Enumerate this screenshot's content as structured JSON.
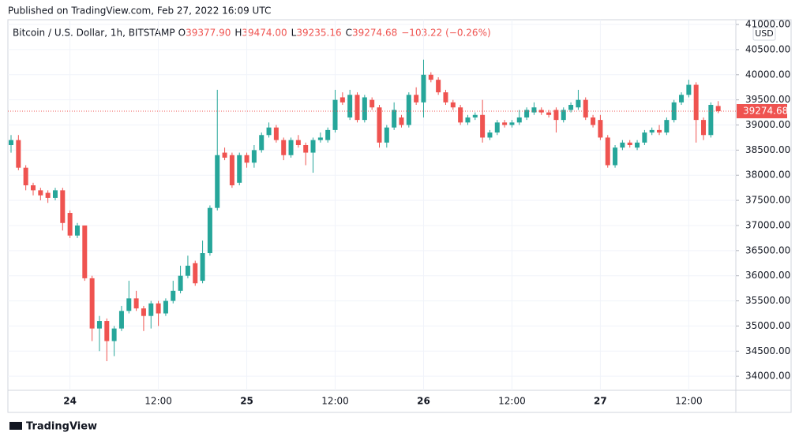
{
  "chart_data": {
    "type": "candlestick",
    "published": "Published on TradingView.com, Feb 27, 2022 16:09 UTC",
    "brand": "TradingView",
    "header": {
      "symbol": "Bitcoin / U.S. Dollar, 1h, BITSTAMP",
      "o_label": "O",
      "o": "39377.90",
      "h_label": "H",
      "h": "39474.00",
      "l_label": "L",
      "l": "39235.16",
      "c_label": "C",
      "c": "39274.68",
      "change": "−103.22 (−0.26%)"
    },
    "currency": "USD",
    "last_price": 39274.68,
    "up_color": "#26a69a",
    "down_color": "#ef5350",
    "grid": true,
    "categories": [
      null,
      null,
      null,
      null,
      null,
      null,
      null,
      null,
      "24",
      null,
      null,
      null,
      null,
      null,
      null,
      null,
      null,
      null,
      null,
      null,
      "12:00",
      null,
      null,
      null,
      null,
      null,
      null,
      null,
      null,
      null,
      null,
      null,
      "25",
      null,
      null,
      null,
      null,
      null,
      null,
      null,
      null,
      null,
      null,
      null,
      "12:00",
      null,
      null,
      null,
      null,
      null,
      null,
      null,
      null,
      null,
      null,
      null,
      "26",
      null,
      null,
      null,
      null,
      null,
      null,
      null,
      null,
      null,
      null,
      null,
      "12:00",
      null,
      null,
      null,
      null,
      null,
      null,
      null,
      null,
      null,
      null,
      null,
      "27",
      null,
      null,
      null,
      null,
      null,
      null,
      null,
      null,
      null,
      null,
      null,
      "12:00",
      null,
      null,
      null,
      null
    ],
    "open": [
      38600,
      38700,
      38150,
      37800,
      37700,
      37650,
      37550,
      37700,
      37250,
      36800,
      37000,
      35950,
      34950,
      35100,
      34700,
      34950,
      35300,
      35550,
      35350,
      35200,
      35450,
      35250,
      35500,
      35700,
      36000,
      36250,
      35900,
      36450,
      37350,
      38450,
      38400,
      37850,
      38400,
      38250,
      38500,
      38800,
      38950,
      38700,
      38400,
      38700,
      38600,
      38450,
      38700,
      38700,
      38900,
      39550,
      39150,
      39600,
      39100,
      39500,
      39350,
      38650,
      38950,
      39150,
      39000,
      39600,
      39450,
      40000,
      39900,
      39650,
      39450,
      39350,
      39050,
      39150,
      39200,
      38750,
      38850,
      39050,
      39000,
      39050,
      39150,
      39250,
      39300,
      39250,
      39300,
      39100,
      39300,
      39350,
      39500,
      39150,
      39100,
      38750,
      38200,
      38550,
      38650,
      38550,
      38650,
      38850,
      38900,
      38850,
      39100,
      39450,
      39600,
      39800,
      39100,
      38800,
      39377.9
    ],
    "high": [
      38800,
      38800,
      38200,
      37850,
      37750,
      37700,
      37750,
      37750,
      37300,
      37050,
      37000,
      36000,
      35200,
      35150,
      35000,
      35400,
      35900,
      35700,
      35400,
      35500,
      35500,
      35550,
      35900,
      36200,
      36400,
      36300,
      36700,
      37400,
      39700,
      38550,
      38450,
      38450,
      38450,
      38600,
      38850,
      39050,
      39000,
      38750,
      38750,
      38800,
      38650,
      38750,
      38850,
      38950,
      39700,
      39650,
      39700,
      39650,
      39600,
      39550,
      39400,
      39000,
      39450,
      39200,
      39650,
      39750,
      40300,
      40050,
      39950,
      39700,
      39500,
      39400,
      39200,
      39250,
      39500,
      38900,
      39100,
      39100,
      39100,
      39300,
      39350,
      39450,
      39350,
      39300,
      39350,
      39350,
      39450,
      39700,
      39550,
      39200,
      39200,
      38800,
      38600,
      38700,
      38700,
      38700,
      38900,
      38950,
      39000,
      39150,
      39500,
      39650,
      39900,
      39850,
      39150,
      39450,
      39474
    ],
    "low": [
      38450,
      38100,
      37700,
      37600,
      37500,
      37450,
      37500,
      36900,
      36750,
      36750,
      35900,
      34700,
      34500,
      34300,
      34400,
      34900,
      35250,
      35300,
      34900,
      34950,
      35000,
      35200,
      35450,
      35650,
      35950,
      35800,
      35850,
      36400,
      37300,
      38300,
      37750,
      37800,
      38150,
      38150,
      38450,
      38750,
      38650,
      38300,
      38350,
      38550,
      38200,
      38050,
      38650,
      38650,
      38850,
      39400,
      39100,
      39050,
      39050,
      39300,
      38550,
      38550,
      38900,
      38950,
      38950,
      39400,
      39150,
      39850,
      39600,
      39400,
      39300,
      39000,
      39000,
      39100,
      38650,
      38700,
      38800,
      38950,
      38950,
      39000,
      39100,
      39200,
      39200,
      39150,
      38850,
      39050,
      39250,
      39300,
      39100,
      38950,
      38700,
      38150,
      38150,
      38500,
      38550,
      38500,
      38600,
      38800,
      38800,
      38800,
      39050,
      39400,
      39550,
      38650,
      38700,
      38750,
      39235.16
    ],
    "close": [
      38700,
      38150,
      37800,
      37700,
      37600,
      37550,
      37700,
      37050,
      36800,
      37000,
      35950,
      34950,
      35100,
      34700,
      34950,
      35300,
      35550,
      35350,
      35200,
      35450,
      35250,
      35500,
      35700,
      36000,
      36200,
      35850,
      36450,
      37350,
      38400,
      38350,
      37800,
      38400,
      38250,
      38500,
      38800,
      38950,
      38700,
      38400,
      38700,
      38600,
      38450,
      38700,
      38750,
      38900,
      39500,
      39450,
      39600,
      39100,
      39550,
      39350,
      38650,
      38950,
      39300,
      39000,
      39600,
      39450,
      40000,
      39900,
      39650,
      39450,
      39350,
      39050,
      39150,
      39200,
      38750,
      38850,
      39050,
      39000,
      39050,
      39150,
      39300,
      39350,
      39250,
      39200,
      39100,
      39300,
      39400,
      39500,
      39150,
      39000,
      38750,
      38200,
      38550,
      38650,
      38600,
      38650,
      38850,
      38900,
      38850,
      39100,
      39450,
      39600,
      39800,
      39100,
      38800,
      39400,
      39274.68
    ],
    "ylim": [
      33720,
      41095
    ],
    "yticks": [
      {
        "value": 34000,
        "label": "34000.00"
      },
      {
        "value": 34500,
        "label": "34500.00"
      },
      {
        "value": 35000,
        "label": "35000.00"
      },
      {
        "value": 35500,
        "label": "35500.00"
      },
      {
        "value": 36000,
        "label": "36000.00"
      },
      {
        "value": 36500,
        "label": "36500.00"
      },
      {
        "value": 37000,
        "label": "37000.00"
      },
      {
        "value": 37500,
        "label": "37500.00"
      },
      {
        "value": 38000,
        "label": "38000.00"
      },
      {
        "value": 38500,
        "label": "38500.00"
      },
      {
        "value": 39000,
        "label": "39000.00"
      },
      {
        "value": 39500,
        "label": "39500.00"
      },
      {
        "value": 40000,
        "label": "40000.00"
      },
      {
        "value": 40500,
        "label": "40500.00"
      },
      {
        "value": 41000,
        "label": "41000.00"
      }
    ]
  }
}
